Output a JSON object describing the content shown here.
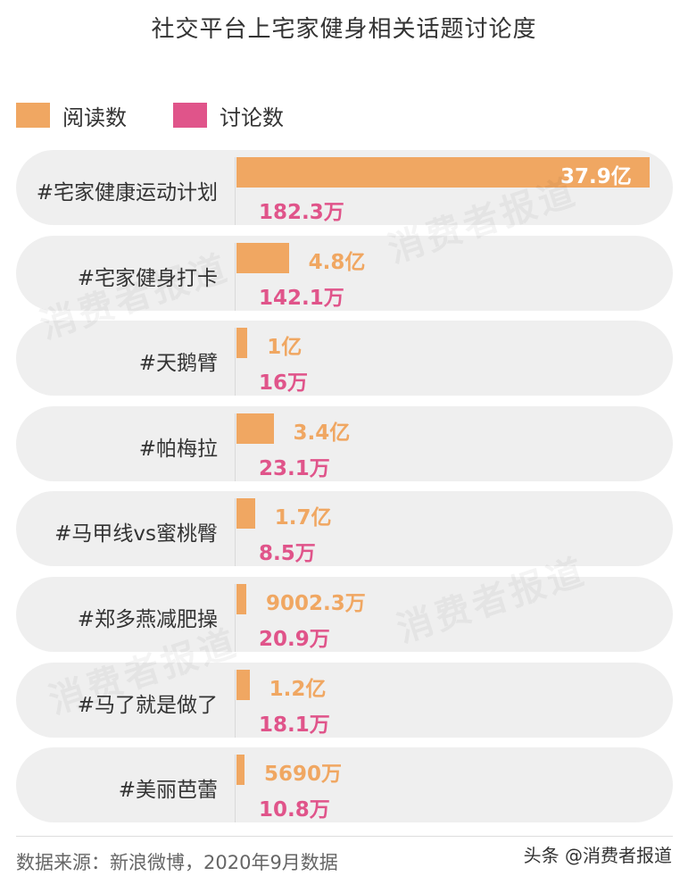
{
  "chart_data": {
    "type": "bar",
    "title": "社交平台上宅家健身相关话题讨论度",
    "categories": [
      "#宅家健康运动计划",
      "#宅家健身打卡",
      "#天鹅臂",
      "#帕梅拉",
      "#马甲线vs蜜桃臀",
      "#郑多燕减肥操",
      "#马了就是做了",
      "#美丽芭蕾"
    ],
    "series": [
      {
        "name": "阅读数",
        "color": "#f0a762",
        "values": [
          379000,
          48000,
          10000,
          34000,
          17000,
          9002.3,
          12000,
          5690
        ],
        "unit": "万",
        "labels": [
          "37.9亿",
          "4.8亿",
          "1亿",
          "3.4亿",
          "1.7亿",
          "9002.3万",
          "1.2亿",
          "5690万"
        ]
      },
      {
        "name": "讨论数",
        "color": "#e0548a",
        "values": [
          182.3,
          142.1,
          16,
          23.1,
          8.5,
          20.9,
          18.1,
          10.8
        ],
        "unit": "万",
        "labels": [
          "182.3万",
          "142.1万",
          "16万",
          "23.1万",
          "8.5万",
          "20.9万",
          "18.1万",
          "10.8万"
        ]
      }
    ],
    "legend": "top-left",
    "grid": false
  },
  "watermark": "消费者报道",
  "source": "数据来源：新浪微博，2020年9月数据",
  "credit": "头条 @消费者报道"
}
